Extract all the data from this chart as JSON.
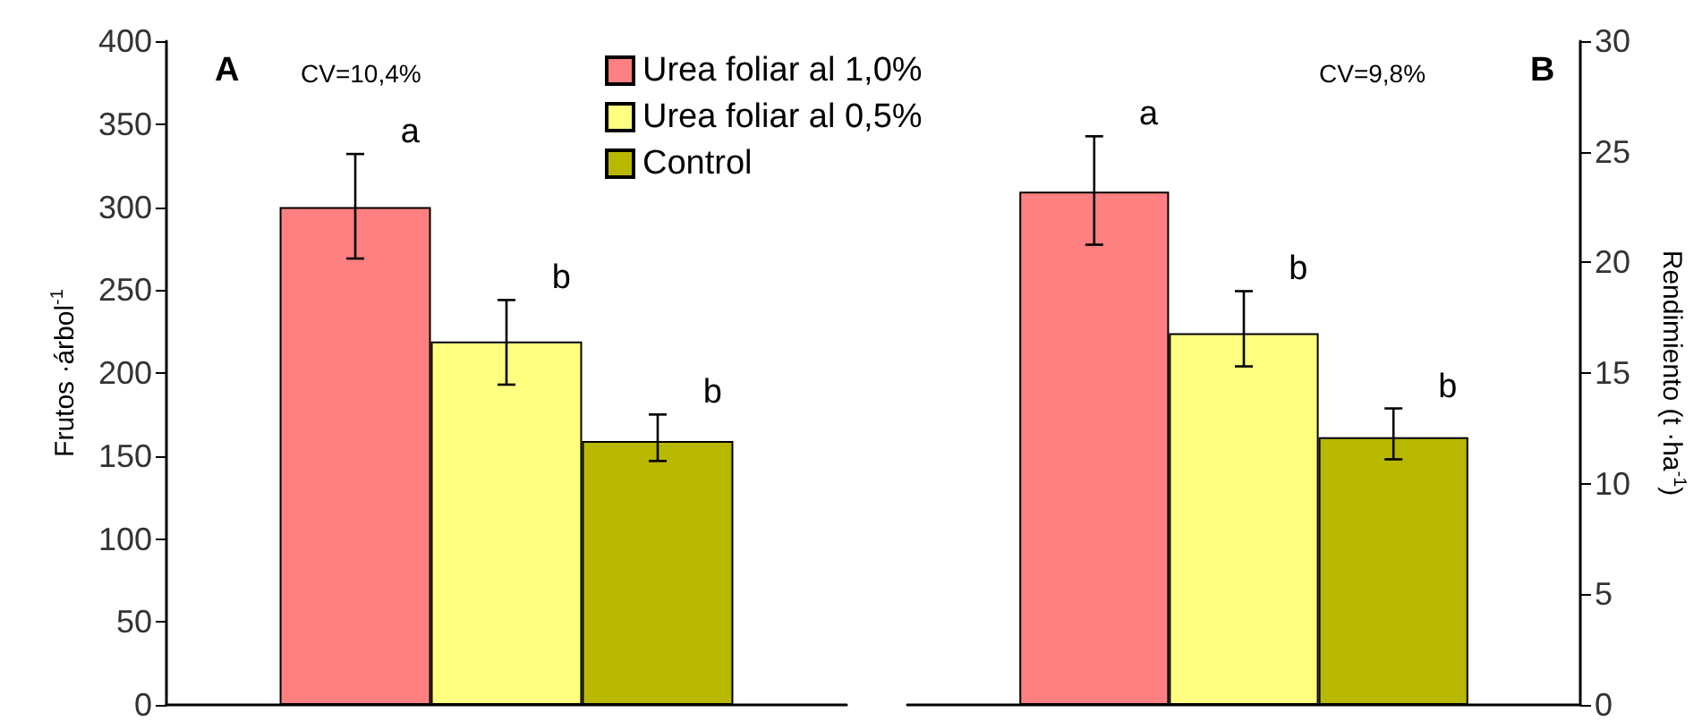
{
  "chart_data": [
    {
      "type": "bar",
      "categories": [
        null
      ],
      "ylabel": "Frutos ·árbol$^{-1}$",
      "ylim": [
        0,
        400
      ],
      "yticks": [
        0,
        50,
        100,
        150,
        200,
        250,
        300,
        350,
        400
      ],
      "tick_labels": "y",
      "grid": false,
      "legend": "top right",
      "series": [
        {
          "name": "Urea foliar al 1,0%",
          "color": "#ff8080",
          "values": [
            300
          ],
          "errors": [
            [
              269,
              332
            ]
          ]
        },
        {
          "name": "Urea foliar al 0,5%",
          "color": "#ffff80",
          "values": [
            219
          ],
          "errors": [
            [
              193,
              244
            ]
          ]
        },
        {
          "name": "Control",
          "color": "#b8b800",
          "values": [
            159
          ],
          "errors": [
            [
              147,
              175
            ]
          ]
        }
      ],
      "annotations": [
        "A",
        "CV=10,4%",
        "a",
        "b",
        "b"
      ]
    },
    {
      "type": "bar",
      "categories": [
        null
      ],
      "ylabel": "Rendimiento (t ·ha$^{-1}$)",
      "ylim": [
        0,
        30
      ],
      "yticks": [
        0,
        5,
        10,
        15,
        20,
        25,
        30
      ],
      "tick_labels": "y",
      "grid": false,
      "series": [
        {
          "color": "#ff8080",
          "values": [
            23.2
          ],
          "errors": [
            [
              20.8,
              25.7
            ]
          ]
        },
        {
          "color": "#ffff80",
          "values": [
            16.8
          ],
          "errors": [
            [
              15.3,
              18.7
            ]
          ]
        },
        {
          "color": "#b8b800",
          "values": [
            12.1
          ],
          "errors": [
            [
              11.1,
              13.4
            ]
          ]
        }
      ],
      "annotations": [
        "CV=9,8%",
        "B",
        "a",
        "b",
        "b"
      ]
    }
  ]
}
